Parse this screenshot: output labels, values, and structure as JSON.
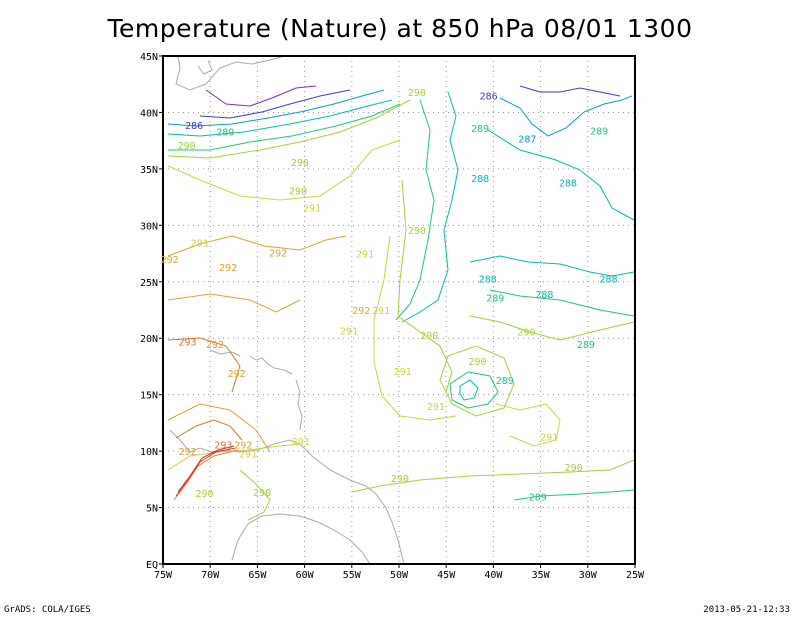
{
  "title": "Temperature (Nature) at 850 hPa 08/01 1300",
  "footer": {
    "credit": "GrADS: COLA/IGES",
    "timestamp": "2013-05-21-12:33"
  },
  "map_data": {
    "type": "contour-map",
    "lon_range": [
      -75,
      -25
    ],
    "lat_range": [
      0,
      45
    ],
    "lon_ticks": [
      {
        "value": -75,
        "label": "75W"
      },
      {
        "value": -70,
        "label": "70W"
      },
      {
        "value": -65,
        "label": "65W"
      },
      {
        "value": -60,
        "label": "60W"
      },
      {
        "value": -55,
        "label": "55W"
      },
      {
        "value": -50,
        "label": "50W"
      },
      {
        "value": -45,
        "label": "45W"
      },
      {
        "value": -40,
        "label": "40W"
      },
      {
        "value": -35,
        "label": "35W"
      },
      {
        "value": -30,
        "label": "30W"
      },
      {
        "value": -25,
        "label": "25W"
      }
    ],
    "lat_ticks": [
      {
        "value": 0,
        "label": "EQ"
      },
      {
        "value": 5,
        "label": "5N"
      },
      {
        "value": 10,
        "label": "10N"
      },
      {
        "value": 15,
        "label": "15N"
      },
      {
        "value": 20,
        "label": "20N"
      },
      {
        "value": 25,
        "label": "25N"
      },
      {
        "value": 30,
        "label": "30N"
      },
      {
        "value": 35,
        "label": "35N"
      },
      {
        "value": 40,
        "label": "40N"
      },
      {
        "value": 45,
        "label": "45N"
      }
    ],
    "grid": true,
    "colors": {
      "286": "#3c3cd2",
      "287": "#00a0c8",
      "288": "#00bcac",
      "289": "#1ec878",
      "290": "#a0d23c",
      "291": "#d2d23c",
      "292": "#e1a032",
      "293": "#d27828",
      "294": "#e63c28",
      "295": "#f08228",
      "296": "#d2282d",
      "285": "#8c28b4",
      "coast": "#aaaaaa"
    },
    "contour_labels": [
      {
        "value": "286",
        "lon": -40.5,
        "lat": 41.5
      },
      {
        "value": "286",
        "lon": -71.7,
        "lat": 38.9
      },
      {
        "value": "287",
        "lon": -36.4,
        "lat": 37.7
      },
      {
        "value": "289",
        "lon": -68.4,
        "lat": 38.3
      },
      {
        "value": "289",
        "lon": -41.4,
        "lat": 38.6
      },
      {
        "value": "289",
        "lon": -28.8,
        "lat": 38.4
      },
      {
        "value": "290",
        "lon": -48.1,
        "lat": 41.8
      },
      {
        "value": "290",
        "lon": -72.5,
        "lat": 37.1
      },
      {
        "value": "290",
        "lon": -60.5,
        "lat": 35.6
      },
      {
        "value": "290",
        "lon": -60.7,
        "lat": 33.1
      },
      {
        "value": "291",
        "lon": -59.2,
        "lat": 31.6
      },
      {
        "value": "288",
        "lon": -41.4,
        "lat": 34.2
      },
      {
        "value": "288",
        "lon": -32.1,
        "lat": 33.8
      },
      {
        "value": "290",
        "lon": -48.1,
        "lat": 29.6
      },
      {
        "value": "291",
        "lon": -71.1,
        "lat": 28.5
      },
      {
        "value": "292",
        "lon": -62.8,
        "lat": 27.6
      },
      {
        "value": "291",
        "lon": -53.6,
        "lat": 27.5
      },
      {
        "value": "292",
        "lon": -74.3,
        "lat": 27.0
      },
      {
        "value": "292",
        "lon": -68.1,
        "lat": 26.3
      },
      {
        "value": "288",
        "lon": -40.6,
        "lat": 25.3
      },
      {
        "value": "288",
        "lon": -34.6,
        "lat": 23.9
      },
      {
        "value": "288",
        "lon": -27.8,
        "lat": 25.3
      },
      {
        "value": "289",
        "lon": -39.8,
        "lat": 23.6
      },
      {
        "value": "292",
        "lon": -54.0,
        "lat": 22.5
      },
      {
        "value": "291",
        "lon": -51.9,
        "lat": 22.5
      },
      {
        "value": "291",
        "lon": -55.3,
        "lat": 20.7
      },
      {
        "value": "290",
        "lon": -46.8,
        "lat": 20.3
      },
      {
        "value": "290",
        "lon": -36.5,
        "lat": 20.6
      },
      {
        "value": "289",
        "lon": -30.2,
        "lat": 19.5
      },
      {
        "value": "293",
        "lon": -72.4,
        "lat": 19.7
      },
      {
        "value": "292",
        "lon": -69.5,
        "lat": 19.5
      },
      {
        "value": "292",
        "lon": -67.2,
        "lat": 16.9
      },
      {
        "value": "290",
        "lon": -41.7,
        "lat": 18.0
      },
      {
        "value": "291",
        "lon": -49.6,
        "lat": 17.1
      },
      {
        "value": "289",
        "lon": -38.8,
        "lat": 16.3
      },
      {
        "value": "291",
        "lon": -46.1,
        "lat": 14.0
      },
      {
        "value": "291",
        "lon": -34.1,
        "lat": 11.3
      },
      {
        "value": "291",
        "lon": -60.4,
        "lat": 10.9
      },
      {
        "value": "293",
        "lon": -68.6,
        "lat": 10.6
      },
      {
        "value": "292",
        "lon": -66.5,
        "lat": 10.6
      },
      {
        "value": "292",
        "lon": -72.4,
        "lat": 10.0
      },
      {
        "value": "291",
        "lon": -66.0,
        "lat": 9.8
      },
      {
        "value": "290",
        "lon": -49.9,
        "lat": 7.6
      },
      {
        "value": "290",
        "lon": -31.5,
        "lat": 8.6
      },
      {
        "value": "290",
        "lon": -70.6,
        "lat": 6.3
      },
      {
        "value": "290",
        "lon": -64.5,
        "lat": 6.4
      },
      {
        "value": "289",
        "lon": -35.3,
        "lat": 6.0
      }
    ]
  }
}
